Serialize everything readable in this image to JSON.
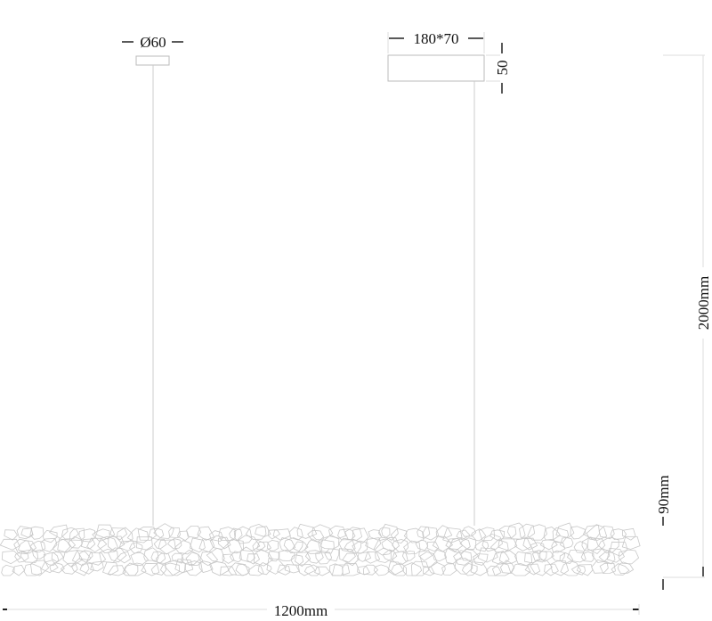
{
  "dimensions": {
    "canopy_round": "Ø60",
    "canopy_rect": "180*70",
    "canopy_rect_height": "50",
    "total_height": "2000mm",
    "body_height": "90mm",
    "total_width": "1200mm"
  },
  "colors": {
    "line": "#bdbdbd",
    "dimension": "#333333",
    "crystal": "#c8c8c8"
  }
}
